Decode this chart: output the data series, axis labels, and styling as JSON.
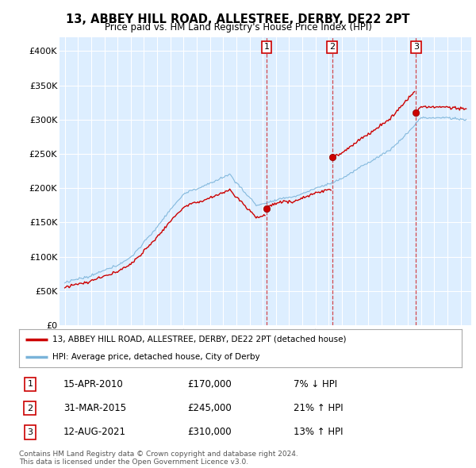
{
  "title": "13, ABBEY HILL ROAD, ALLESTREE, DERBY, DE22 2PT",
  "subtitle": "Price paid vs. HM Land Registry's House Price Index (HPI)",
  "ylim": [
    0,
    420000
  ],
  "yticks": [
    0,
    50000,
    100000,
    150000,
    200000,
    250000,
    300000,
    350000,
    400000
  ],
  "ytick_labels": [
    "£0",
    "£50K",
    "£100K",
    "£150K",
    "£200K",
    "£250K",
    "£300K",
    "£350K",
    "£400K"
  ],
  "sale_dates_yr": [
    2010.29,
    2015.25,
    2021.62
  ],
  "sale_prices": [
    170000,
    245000,
    310000
  ],
  "sale_labels": [
    "1",
    "2",
    "3"
  ],
  "sale_info": [
    {
      "num": "1",
      "date": "15-APR-2010",
      "price": "£170,000",
      "change": "7% ↓ HPI"
    },
    {
      "num": "2",
      "date": "31-MAR-2015",
      "price": "£245,000",
      "change": "21% ↑ HPI"
    },
    {
      "num": "3",
      "date": "12-AUG-2021",
      "price": "£310,000",
      "change": "13% ↑ HPI"
    }
  ],
  "legend_line1": "13, ABBEY HILL ROAD, ALLESTREE, DERBY, DE22 2PT (detached house)",
  "legend_line2": "HPI: Average price, detached house, City of Derby",
  "footer1": "Contains HM Land Registry data © Crown copyright and database right 2024.",
  "footer2": "This data is licensed under the Open Government Licence v3.0.",
  "line_color_red": "#cc0000",
  "line_color_blue": "#7ab3d9",
  "background_color": "#ffffff",
  "plot_bg_color": "#ddeeff",
  "grid_color": "#cccccc",
  "dashed_line_color": "#cc0000",
  "shade_color": "#ddeeff"
}
